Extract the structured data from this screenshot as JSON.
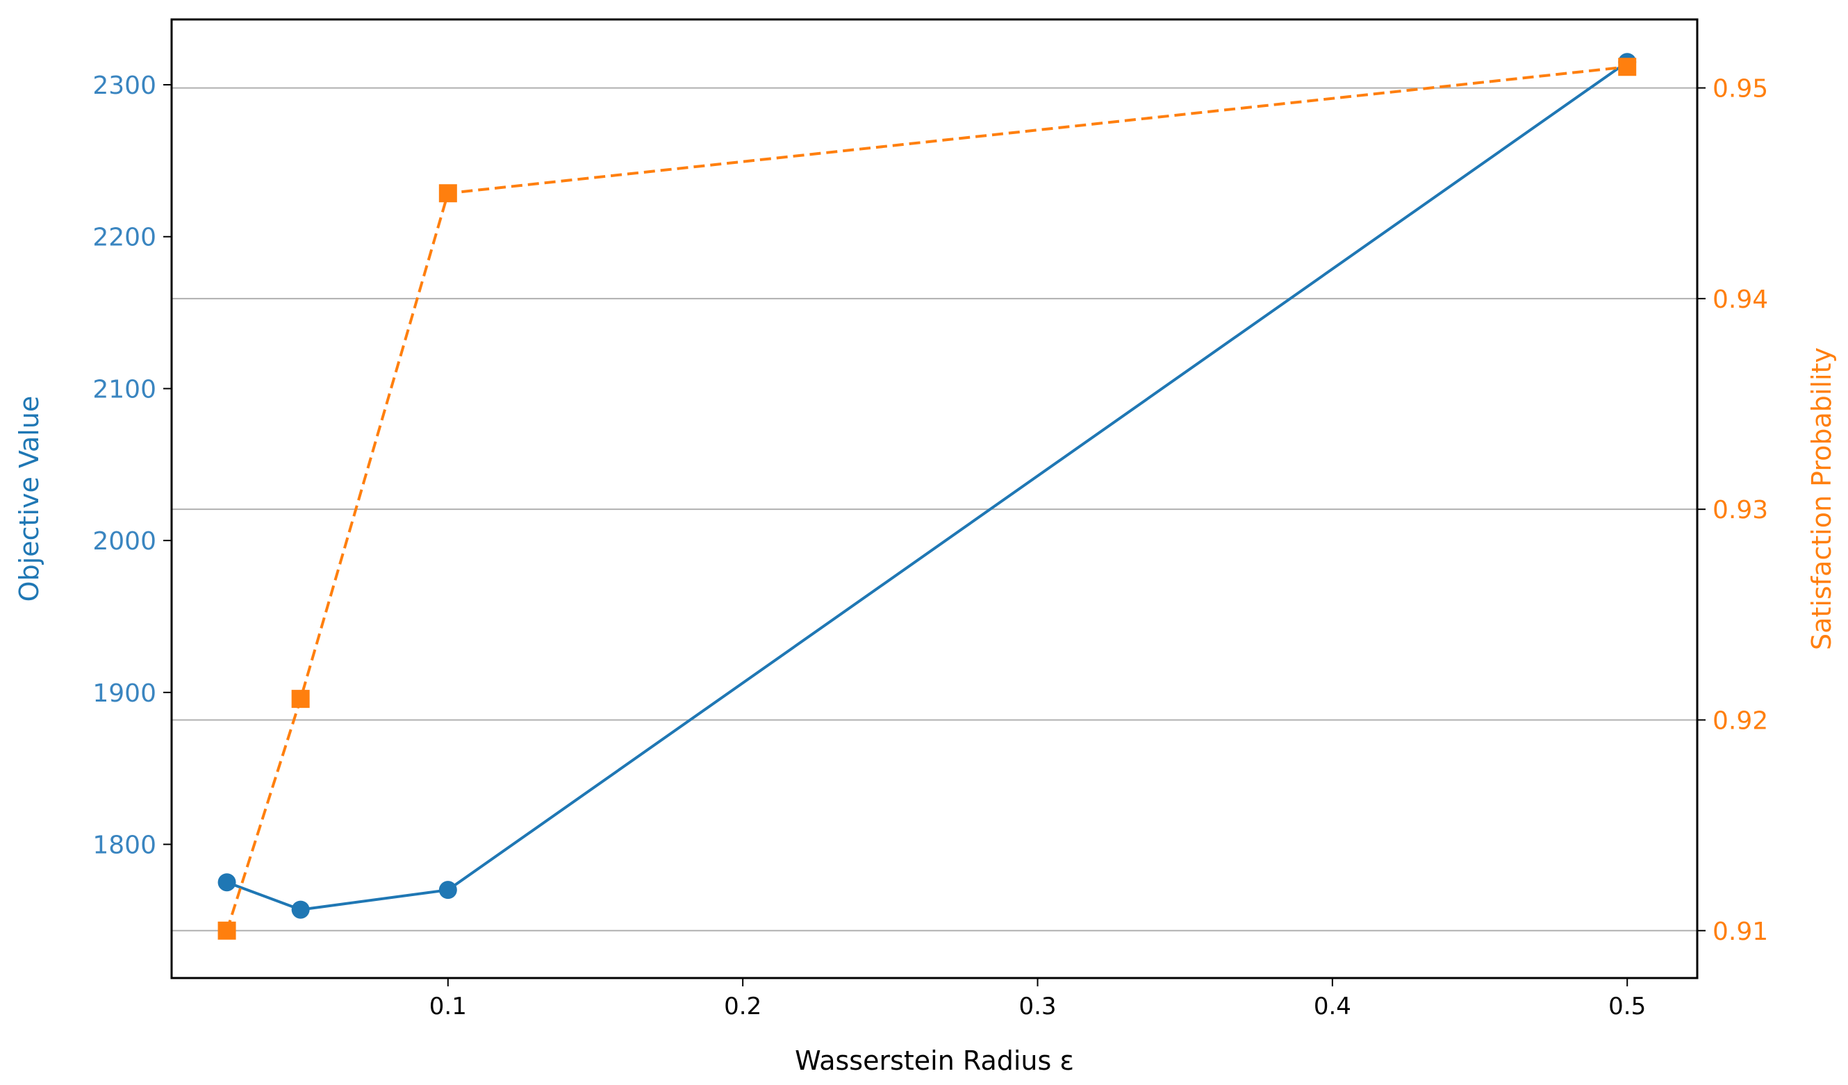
{
  "colors": {
    "objective": "#1f77b4",
    "satisfaction": "#ff7f0e",
    "objective_tick": "#3a85c0",
    "grid": "#b0b0b0",
    "axes": "#000000"
  },
  "chart_data": {
    "type": "line",
    "title": "",
    "xlabel": "Wasserstein Radius ε",
    "xlim": [
      0.00625,
      0.52375
    ],
    "x_ticks": [
      0.1,
      0.2,
      0.3,
      0.4,
      0.5
    ],
    "x_tick_labels": [
      "0.1",
      "0.2",
      "0.3",
      "0.4",
      "0.5"
    ],
    "x": [
      0.025,
      0.05,
      0.1,
      0.5
    ],
    "left_axis": {
      "label": "Objective Value",
      "ylim": [
        1712,
        2343
      ],
      "ticks": [
        1800,
        1900,
        2000,
        2100,
        2200,
        2300
      ],
      "tick_labels": [
        "1800",
        "1900",
        "2000",
        "2100",
        "2200",
        "2300"
      ]
    },
    "right_axis": {
      "label": "Satisfaction Probability",
      "ylim": [
        0.90775,
        0.95325
      ],
      "ticks": [
        0.91,
        0.92,
        0.93,
        0.94,
        0.95
      ],
      "tick_labels": [
        "0.91",
        "0.92",
        "0.93",
        "0.94",
        "0.95"
      ]
    },
    "grid": "horizontal lines at right-axis ticks",
    "legend": "none",
    "series": [
      {
        "axis": "left",
        "style": "solid",
        "marker": "circle",
        "values": [
          1775,
          1757,
          1770,
          2315
        ]
      },
      {
        "axis": "right",
        "style": "dashed",
        "marker": "square",
        "values": [
          0.91,
          0.921,
          0.945,
          0.951
        ]
      }
    ]
  }
}
